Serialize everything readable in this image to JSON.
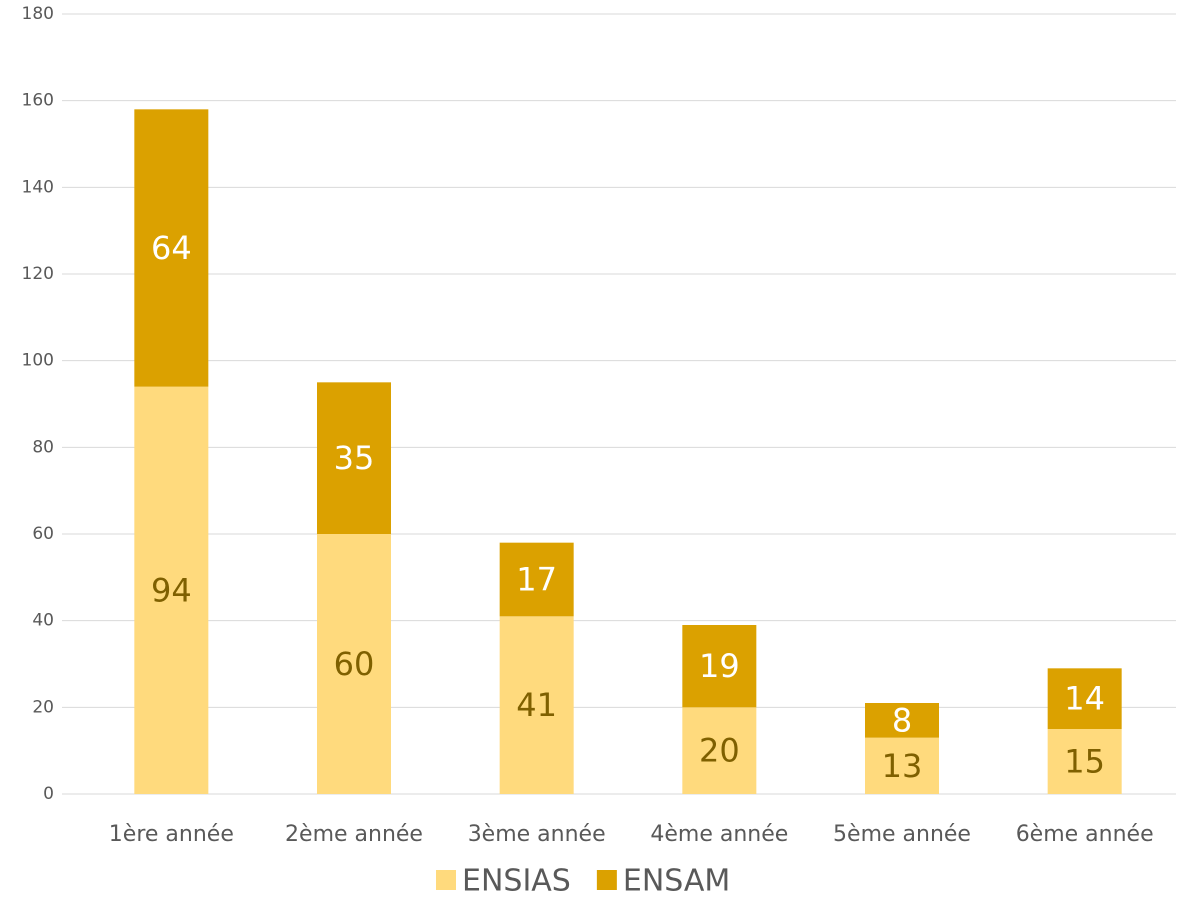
{
  "chart_data": {
    "type": "stacked_bar",
    "categories": [
      "1ère année",
      "2ème année",
      "3ème année",
      "4ème année",
      "5ème année",
      "6ème année"
    ],
    "series": [
      {
        "name": "ENSIAS",
        "color": "#ffda7d",
        "values": [
          94,
          60,
          41,
          20,
          13,
          15
        ]
      },
      {
        "name": "ENSAM",
        "color": "#dba100",
        "values": [
          64,
          35,
          17,
          19,
          8,
          14
        ]
      }
    ],
    "ylim": [
      0,
      180
    ],
    "yticks": [
      0,
      20,
      40,
      60,
      80,
      100,
      120,
      140,
      160,
      180
    ],
    "grid": true,
    "legend": "bottom"
  }
}
